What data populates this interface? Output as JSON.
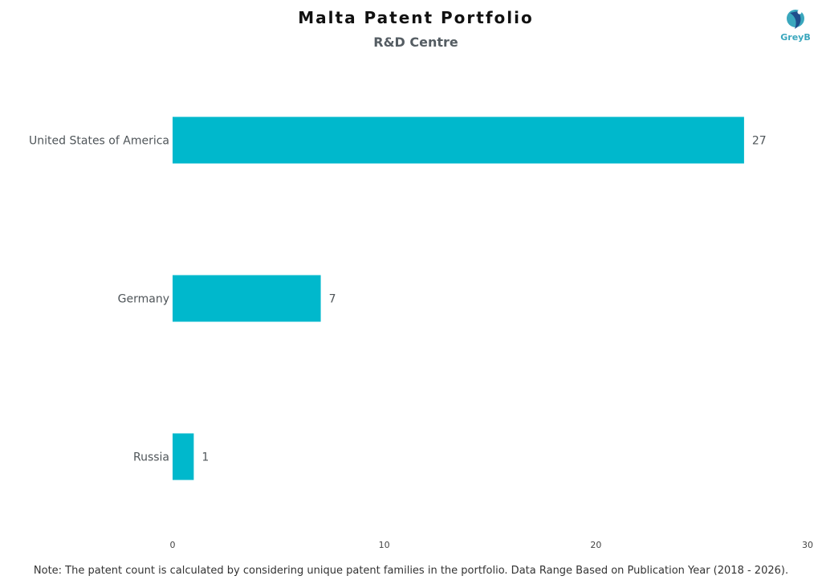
{
  "header": {
    "title": "Malta Patent Portfolio",
    "subtitle": "R&D Centre"
  },
  "logo": {
    "text": "GreyB",
    "colors": [
      "#3aa7bd",
      "#1f4e8c"
    ]
  },
  "chart_data": {
    "type": "bar",
    "orientation": "horizontal",
    "categories": [
      "United States of America",
      "Germany",
      "Russia"
    ],
    "values": [
      27,
      7,
      1
    ],
    "data_labels": [
      "27",
      "7",
      "1"
    ],
    "xlim": [
      0,
      30
    ],
    "x_ticks": [
      0,
      10,
      20,
      30
    ],
    "x_tick_labels": [
      "0",
      "10",
      "20",
      "30"
    ],
    "bar_color": "#00b8cc",
    "grid": false,
    "legend": "none"
  },
  "footer": {
    "note": "Note: The patent count is calculated by considering unique patent families in the portfolio. Data Range Based on Publication Year (2018 - 2026)."
  }
}
